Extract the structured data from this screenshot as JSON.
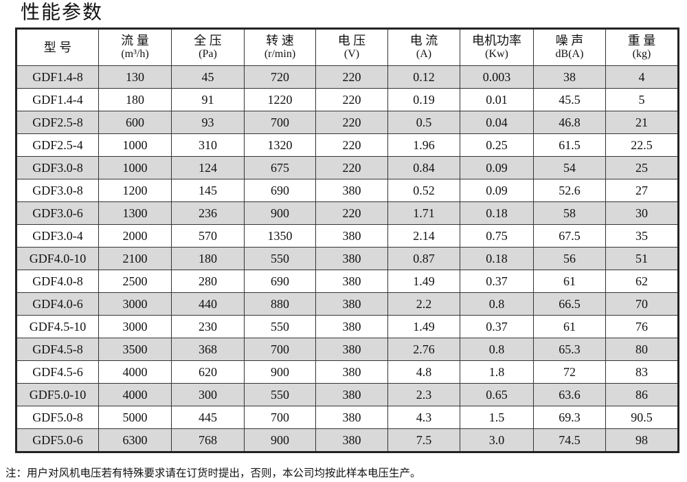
{
  "title": "性能参数",
  "headers": [
    {
      "label": "型 号",
      "unit": ""
    },
    {
      "label": "流 量",
      "unit": "(m³/h)"
    },
    {
      "label": "全 压",
      "unit": "(Pa)"
    },
    {
      "label": "转 速",
      "unit": "(r/min)"
    },
    {
      "label": "电 压",
      "unit": "(V)"
    },
    {
      "label": "电 流",
      "unit": "(A)"
    },
    {
      "label": "电机功率",
      "unit": "(Kw)"
    },
    {
      "label": "噪 声",
      "unit": "dB(A)"
    },
    {
      "label": "重 量",
      "unit": "(kg)"
    }
  ],
  "rows": [
    [
      "GDF1.4-8",
      "130",
      "45",
      "720",
      "220",
      "0.12",
      "0.003",
      "38",
      "4"
    ],
    [
      "GDF1.4-4",
      "180",
      "91",
      "1220",
      "220",
      "0.19",
      "0.01",
      "45.5",
      "5"
    ],
    [
      "GDF2.5-8",
      "600",
      "93",
      "700",
      "220",
      "0.5",
      "0.04",
      "46.8",
      "21"
    ],
    [
      "GDF2.5-4",
      "1000",
      "310",
      "1320",
      "220",
      "1.96",
      "0.25",
      "61.5",
      "22.5"
    ],
    [
      "GDF3.0-8",
      "1000",
      "124",
      "675",
      "220",
      "0.84",
      "0.09",
      "54",
      "25"
    ],
    [
      "GDF3.0-8",
      "1200",
      "145",
      "690",
      "380",
      "0.52",
      "0.09",
      "52.6",
      "27"
    ],
    [
      "GDF3.0-6",
      "1300",
      "236",
      "900",
      "220",
      "1.71",
      "0.18",
      "58",
      "30"
    ],
    [
      "GDF3.0-4",
      "2000",
      "570",
      "1350",
      "380",
      "2.14",
      "0.75",
      "67.5",
      "35"
    ],
    [
      "GDF4.0-10",
      "2100",
      "180",
      "550",
      "380",
      "0.87",
      "0.18",
      "56",
      "51"
    ],
    [
      "GDF4.0-8",
      "2500",
      "280",
      "690",
      "380",
      "1.49",
      "0.37",
      "61",
      "62"
    ],
    [
      "GDF4.0-6",
      "3000",
      "440",
      "880",
      "380",
      "2.2",
      "0.8",
      "66.5",
      "70"
    ],
    [
      "GDF4.5-10",
      "3000",
      "230",
      "550",
      "380",
      "1.49",
      "0.37",
      "61",
      "76"
    ],
    [
      "GDF4.5-8",
      "3500",
      "368",
      "700",
      "380",
      "2.76",
      "0.8",
      "65.3",
      "80"
    ],
    [
      "GDF4.5-6",
      "4000",
      "620",
      "900",
      "380",
      "4.8",
      "1.8",
      "72",
      "83"
    ],
    [
      "GDF5.0-10",
      "4000",
      "300",
      "550",
      "380",
      "2.3",
      "0.65",
      "63.6",
      "86"
    ],
    [
      "GDF5.0-8",
      "5000",
      "445",
      "700",
      "380",
      "4.3",
      "1.5",
      "69.3",
      "90.5"
    ],
    [
      "GDF5.0-6",
      "6300",
      "768",
      "900",
      "380",
      "7.5",
      "3.0",
      "74.5",
      "98"
    ]
  ],
  "note": "注：用户对风机电压若有特殊要求请在订货时提出，否则，本公司均按此样本电压生产。"
}
